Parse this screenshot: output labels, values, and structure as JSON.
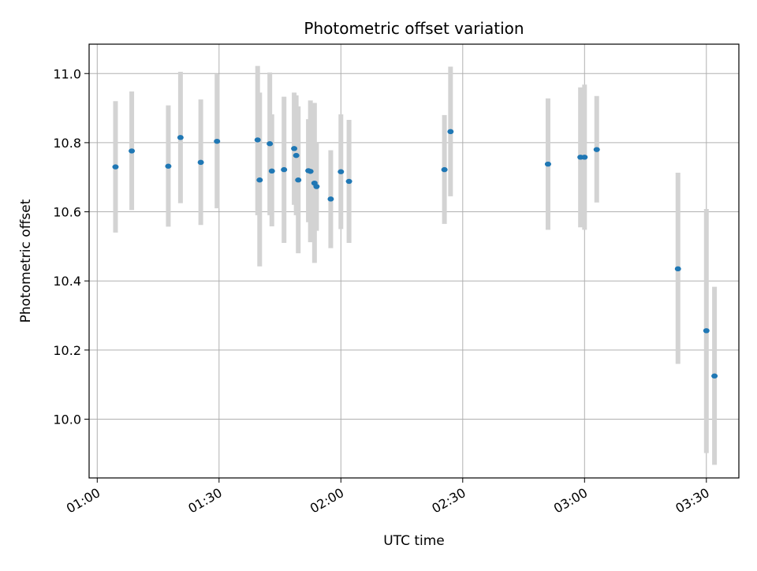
{
  "chart_data": {
    "type": "scatter",
    "title": "Photometric offset variation",
    "xlabel": "UTC time",
    "ylabel": "Photometric offset",
    "x_axis": {
      "type": "time",
      "range": [
        "00:58",
        "03:38"
      ],
      "ticks": [
        "01:00",
        "01:30",
        "02:00",
        "02:30",
        "03:00",
        "03:30"
      ]
    },
    "y_axis": {
      "range": [
        9.83,
        11.085
      ],
      "ticks": [
        "10.0",
        "10.2",
        "10.4",
        "10.6",
        "10.8",
        "11.0"
      ]
    },
    "grid": true,
    "colors": {
      "points": "#1f77b4",
      "errorbars": "#d3d3d3",
      "grid": "#b0b0b0"
    },
    "series": [
      {
        "points": [
          {
            "time": "01:04:30",
            "y": 10.73,
            "low": 10.54,
            "high": 10.92
          },
          {
            "time": "01:08:30",
            "y": 10.776,
            "low": 10.605,
            "high": 10.948
          },
          {
            "time": "01:17:30",
            "y": 10.732,
            "low": 10.557,
            "high": 10.908
          },
          {
            "time": "01:20:30",
            "y": 10.815,
            "low": 10.625,
            "high": 11.005
          },
          {
            "time": "01:25:30",
            "y": 10.743,
            "low": 10.562,
            "high": 10.925
          },
          {
            "time": "01:29:30",
            "y": 10.804,
            "low": 10.61,
            "high": 10.998
          },
          {
            "time": "01:39:30",
            "y": 10.808,
            "low": 10.59,
            "high": 11.022
          },
          {
            "time": "01:40:00",
            "y": 10.692,
            "low": 10.442,
            "high": 10.945
          },
          {
            "time": "01:42:30",
            "y": 10.797,
            "low": 10.59,
            "high": 11.003
          },
          {
            "time": "01:43:00",
            "y": 10.718,
            "low": 10.558,
            "high": 10.882
          },
          {
            "time": "01:46:00",
            "y": 10.722,
            "low": 10.51,
            "high": 10.933
          },
          {
            "time": "01:48:30",
            "y": 10.783,
            "low": 10.62,
            "high": 10.945
          },
          {
            "time": "01:49:00",
            "y": 10.763,
            "low": 10.59,
            "high": 10.937
          },
          {
            "time": "01:49:30",
            "y": 10.692,
            "low": 10.48,
            "high": 10.905
          },
          {
            "time": "01:52:00",
            "y": 10.719,
            "low": 10.57,
            "high": 10.868
          },
          {
            "time": "01:52:30",
            "y": 10.717,
            "low": 10.512,
            "high": 10.922
          },
          {
            "time": "01:53:30",
            "y": 10.683,
            "low": 10.452,
            "high": 10.915
          },
          {
            "time": "01:54:00",
            "y": 10.673,
            "low": 10.545,
            "high": 10.802
          },
          {
            "time": "01:57:30",
            "y": 10.637,
            "low": 10.495,
            "high": 10.778
          },
          {
            "time": "02:00:00",
            "y": 10.716,
            "low": 10.55,
            "high": 10.882
          },
          {
            "time": "02:02:00",
            "y": 10.688,
            "low": 10.51,
            "high": 10.866
          },
          {
            "time": "02:25:30",
            "y": 10.722,
            "low": 10.565,
            "high": 10.88
          },
          {
            "time": "02:27:00",
            "y": 10.832,
            "low": 10.645,
            "high": 11.02
          },
          {
            "time": "02:51:00",
            "y": 10.738,
            "low": 10.548,
            "high": 10.928
          },
          {
            "time": "02:59:00",
            "y": 10.758,
            "low": 10.555,
            "high": 10.96
          },
          {
            "time": "03:00:00",
            "y": 10.758,
            "low": 10.548,
            "high": 10.968
          },
          {
            "time": "03:03:00",
            "y": 10.78,
            "low": 10.627,
            "high": 10.935
          },
          {
            "time": "03:23:00",
            "y": 10.435,
            "low": 10.16,
            "high": 10.713
          },
          {
            "time": "03:30:00",
            "y": 10.256,
            "low": 9.902,
            "high": 10.608
          },
          {
            "time": "03:32:00",
            "y": 10.125,
            "low": 9.868,
            "high": 10.383
          }
        ]
      }
    ]
  }
}
